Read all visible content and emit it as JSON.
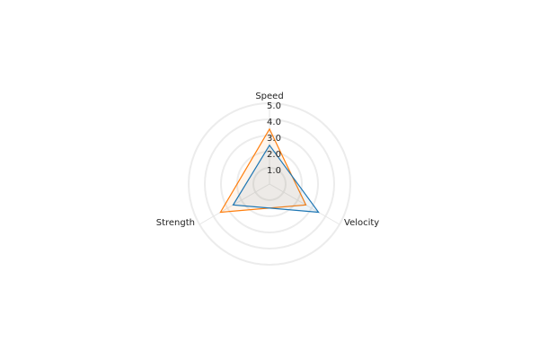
{
  "chart_data": {
    "type": "radar",
    "axes": [
      "Speed",
      "Velocity",
      "Strength"
    ],
    "radial_ticks": [
      "1.0",
      "2.0",
      "3.0",
      "4.0",
      "5.0"
    ],
    "rlim": [
      0,
      5
    ],
    "grid": true,
    "series": [
      {
        "values": [
          3.4,
          2.6,
          3.5
        ],
        "color": "#ff7f0e"
      },
      {
        "values": [
          2.4,
          3.5,
          2.6
        ],
        "color": "#1f77b4"
      }
    ]
  }
}
